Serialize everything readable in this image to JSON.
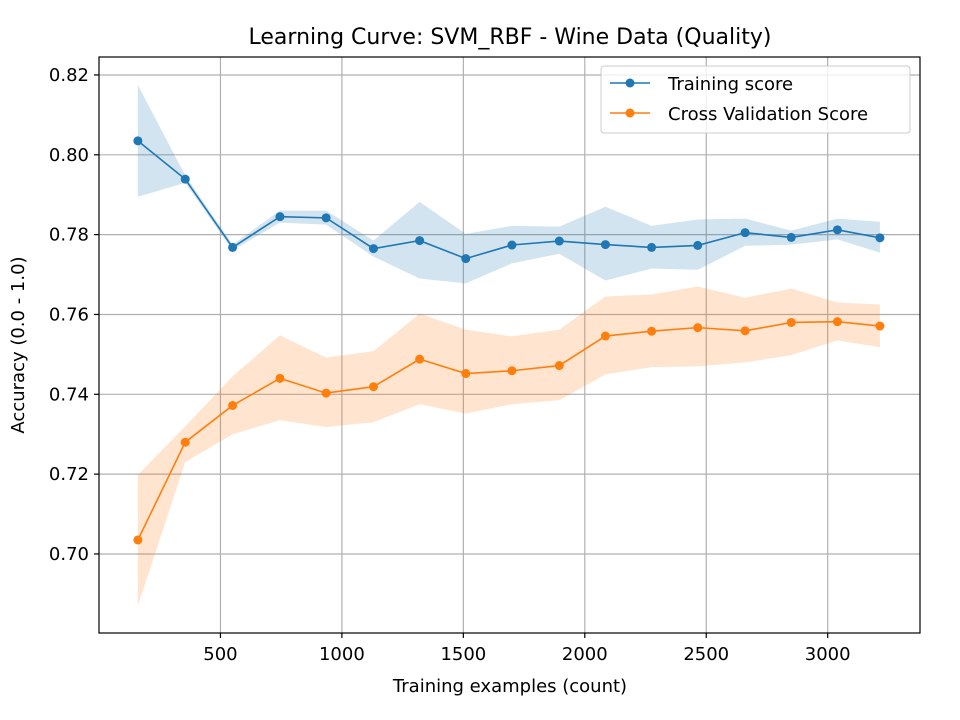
{
  "chart_data": {
    "type": "line",
    "title": "Learning Curve: SVM_RBF - Wine Data (Quality)",
    "xlabel": "Training examples (count)",
    "ylabel": "Accuracy (0.0 - 1.0)",
    "xlim": [
      0,
      3380
    ],
    "ylim": [
      0.6802,
      0.8245
    ],
    "xticks": [
      500,
      1000,
      1500,
      2000,
      2500,
      3000
    ],
    "xtick_labels": [
      "500",
      "1000",
      "1500",
      "2000",
      "2500",
      "3000"
    ],
    "yticks": [
      0.7,
      0.72,
      0.74,
      0.76,
      0.78,
      0.8,
      0.82
    ],
    "ytick_labels": [
      "0.70",
      "0.72",
      "0.74",
      "0.76",
      "0.78",
      "0.80",
      "0.82"
    ],
    "grid": true,
    "legend_position": "top-right",
    "x": [
      160,
      355,
      550,
      745,
      935,
      1130,
      1320,
      1510,
      1700,
      1895,
      2085,
      2275,
      2465,
      2660,
      2850,
      3040,
      3215
    ],
    "series": [
      {
        "name": "Training score",
        "color": "#1f77b4",
        "band_color": "rgba(31,119,180,0.2)",
        "values": [
          0.8035,
          0.7939,
          0.7768,
          0.7845,
          0.7842,
          0.7765,
          0.7785,
          0.774,
          0.7774,
          0.7784,
          0.7775,
          0.7768,
          0.7773,
          0.7805,
          0.7793,
          0.7812,
          0.7792
        ],
        "upper": [
          0.8175,
          0.7948,
          0.7775,
          0.786,
          0.786,
          0.7785,
          0.7882,
          0.7802,
          0.7822,
          0.782,
          0.787,
          0.7822,
          0.7838,
          0.784,
          0.781,
          0.784,
          0.7832
        ],
        "lower": [
          0.7895,
          0.793,
          0.7761,
          0.783,
          0.7825,
          0.7745,
          0.769,
          0.7678,
          0.7728,
          0.7752,
          0.7685,
          0.7715,
          0.7712,
          0.7772,
          0.7775,
          0.7788,
          0.7755
        ]
      },
      {
        "name": "Cross Validation Score",
        "color": "#ff7f0e",
        "band_color": "rgba(255,127,14,0.2)",
        "values": [
          0.7035,
          0.728,
          0.7372,
          0.744,
          0.7403,
          0.7419,
          0.7488,
          0.7452,
          0.7459,
          0.7472,
          0.7546,
          0.7558,
          0.7567,
          0.7559,
          0.758,
          0.7582,
          0.7571
        ],
        "upper": [
          0.7198,
          0.732,
          0.7445,
          0.7548,
          0.7492,
          0.7508,
          0.7602,
          0.7562,
          0.7545,
          0.7562,
          0.7645,
          0.765,
          0.767,
          0.7642,
          0.7665,
          0.763,
          0.7625
        ],
        "lower": [
          0.687,
          0.723,
          0.73,
          0.7335,
          0.7318,
          0.733,
          0.7375,
          0.7352,
          0.7375,
          0.7385,
          0.745,
          0.7468,
          0.747,
          0.748,
          0.7498,
          0.7535,
          0.7518
        ]
      }
    ]
  }
}
